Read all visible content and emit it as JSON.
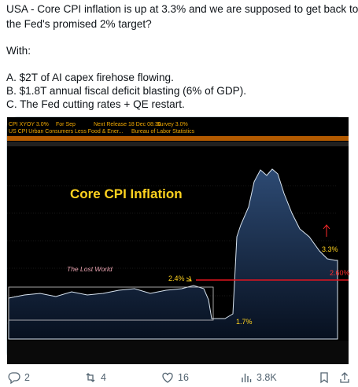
{
  "post": {
    "lines": [
      "USA - Core CPI inflation is up at 3.3% and we are supposed to get back to",
      "the Fed's promised 2% target?",
      "With:",
      "A. $2T of AI capex firehose flowing.",
      "B. $1.8T annual fiscal deficit blasting (6% of GDP).",
      "C. The Fed cutting rates + QE restart."
    ],
    "image": {
      "header": [
        "CPI XYOY 3.0%",
        "For Sep",
        "Next Release 18 Dec 08:30",
        "Survey 3.0%"
      ],
      "subheader": [
        "US CPI Urban Consumers Less Food & Ener...",
        "Bureau of Labor Statistics"
      ],
      "title": "Core CPI Inflation",
      "annotations": [
        "The Lost World",
        "2.4%",
        "1.7%",
        "3.3%",
        "2.60%"
      ]
    },
    "actions": {
      "replies": "2",
      "reposts": "4",
      "likes": "16",
      "views": "3.8K"
    }
  }
}
